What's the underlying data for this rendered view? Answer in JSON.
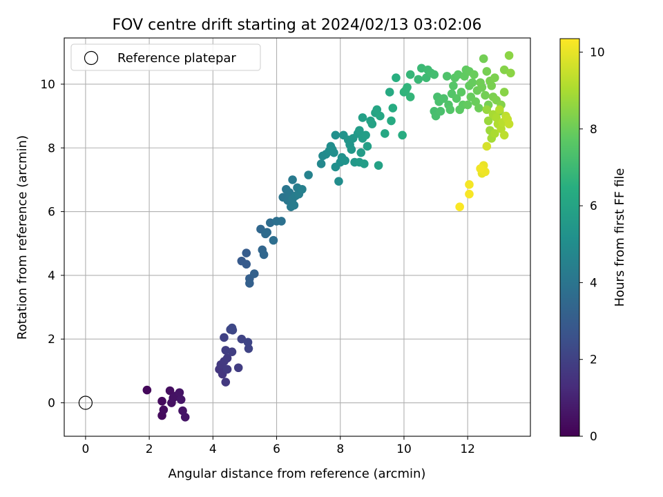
{
  "chart_data": {
    "type": "scatter",
    "title": "FOV centre drift starting at 2024/02/13 03:02:06",
    "xlabel": "Angular distance from reference (arcmin)",
    "ylabel": "Rotation from reference (arcmin)",
    "xlim": [
      -0.67,
      13.97
    ],
    "ylim": [
      -1.05,
      11.45
    ],
    "x_ticks": [
      0,
      2,
      4,
      6,
      8,
      10,
      12
    ],
    "y_ticks": [
      0,
      2,
      4,
      6,
      8,
      10
    ],
    "grid": true,
    "legend": {
      "placement": "top-left",
      "entries": [
        "Reference platepar"
      ]
    },
    "colorbar": {
      "label": "Hours from first FF file",
      "colormap": "viridis",
      "range": [
        0,
        10.35
      ],
      "ticks": [
        0,
        2,
        4,
        6,
        8,
        10
      ]
    },
    "reference_point": {
      "x": 0,
      "y": 0
    },
    "points": [
      [
        1.93,
        0.4,
        0.2
      ],
      [
        2.4,
        0.05,
        0.3
      ],
      [
        2.45,
        -0.22,
        0.35
      ],
      [
        2.4,
        -0.4,
        0.3
      ],
      [
        2.65,
        0.38,
        0.4
      ],
      [
        2.7,
        0.0,
        0.45
      ],
      [
        2.85,
        0.22,
        0.5
      ],
      [
        2.95,
        0.32,
        0.55
      ],
      [
        3.0,
        0.1,
        0.6
      ],
      [
        3.05,
        -0.25,
        0.55
      ],
      [
        3.13,
        -0.45,
        0.6
      ],
      [
        2.75,
        0.15,
        0.5
      ],
      [
        4.2,
        1.05,
        1.6
      ],
      [
        4.25,
        1.2,
        1.7
      ],
      [
        4.3,
        0.9,
        1.65
      ],
      [
        4.35,
        1.3,
        1.75
      ],
      [
        4.4,
        0.65,
        1.7
      ],
      [
        4.45,
        1.05,
        1.8
      ],
      [
        4.4,
        1.65,
        1.9
      ],
      [
        4.45,
        1.4,
        1.8
      ],
      [
        4.35,
        2.05,
        2.0
      ],
      [
        4.55,
        2.3,
        2.2
      ],
      [
        4.6,
        2.35,
        2.25
      ],
      [
        4.62,
        2.28,
        2.2
      ],
      [
        4.6,
        1.6,
        1.9
      ],
      [
        4.8,
        1.1,
        1.85
      ],
      [
        4.9,
        2.0,
        2.1
      ],
      [
        5.1,
        1.9,
        2.15
      ],
      [
        5.12,
        1.7,
        2.1
      ],
      [
        4.9,
        4.45,
        2.9
      ],
      [
        5.05,
        4.35,
        2.95
      ],
      [
        5.05,
        4.7,
        3.0
      ],
      [
        5.15,
        3.9,
        3.1
      ],
      [
        5.15,
        3.75,
        3.15
      ],
      [
        5.3,
        4.05,
        3.2
      ],
      [
        5.5,
        5.45,
        3.45
      ],
      [
        5.55,
        4.8,
        3.4
      ],
      [
        5.6,
        4.65,
        3.45
      ],
      [
        5.65,
        5.3,
        3.55
      ],
      [
        5.7,
        5.35,
        3.6
      ],
      [
        5.8,
        5.65,
        3.65
      ],
      [
        5.9,
        5.1,
        3.7
      ],
      [
        6.0,
        5.7,
        3.8
      ],
      [
        6.15,
        5.7,
        3.85
      ],
      [
        6.2,
        6.45,
        4.0
      ],
      [
        6.3,
        6.7,
        4.05
      ],
      [
        6.35,
        6.35,
        4.1
      ],
      [
        6.4,
        6.6,
        4.1
      ],
      [
        6.45,
        6.15,
        4.2
      ],
      [
        6.5,
        7.0,
        4.2
      ],
      [
        6.5,
        6.4,
        4.25
      ],
      [
        6.55,
        6.2,
        4.3
      ],
      [
        6.6,
        6.5,
        4.3
      ],
      [
        6.65,
        6.75,
        4.35
      ],
      [
        6.7,
        6.55,
        4.4
      ],
      [
        6.8,
        6.7,
        4.45
      ],
      [
        7.0,
        7.15,
        4.55
      ],
      [
        7.4,
        7.5,
        4.8
      ],
      [
        7.45,
        7.75,
        4.85
      ],
      [
        7.55,
        7.8,
        4.9
      ],
      [
        7.65,
        7.9,
        4.95
      ],
      [
        7.7,
        8.05,
        5.0
      ],
      [
        7.75,
        7.95,
        5.05
      ],
      [
        7.8,
        7.85,
        5.1
      ],
      [
        7.85,
        7.4,
        5.1
      ],
      [
        7.85,
        8.4,
        5.15
      ],
      [
        7.95,
        6.95,
        5.0
      ],
      [
        8.0,
        7.55,
        5.15
      ],
      [
        8.05,
        7.7,
        5.2
      ],
      [
        8.1,
        8.4,
        5.25
      ],
      [
        8.15,
        7.6,
        5.25
      ],
      [
        8.25,
        8.25,
        5.35
      ],
      [
        8.3,
        8.1,
        5.4
      ],
      [
        8.35,
        7.95,
        5.45
      ],
      [
        8.4,
        8.3,
        5.45
      ],
      [
        8.45,
        7.55,
        5.5
      ],
      [
        8.55,
        8.45,
        5.55
      ],
      [
        8.6,
        7.55,
        5.6
      ],
      [
        8.6,
        8.55,
        5.65
      ],
      [
        8.65,
        7.85,
        5.65
      ],
      [
        8.7,
        8.3,
        5.7
      ],
      [
        8.7,
        8.95,
        5.8
      ],
      [
        8.75,
        7.5,
        5.7
      ],
      [
        8.8,
        8.4,
        5.75
      ],
      [
        8.85,
        8.05,
        5.8
      ],
      [
        8.95,
        8.85,
        5.9
      ],
      [
        9.0,
        8.75,
        5.95
      ],
      [
        9.1,
        9.1,
        6.0
      ],
      [
        9.15,
        9.2,
        6.05
      ],
      [
        9.2,
        7.45,
        5.9
      ],
      [
        9.25,
        9.0,
        6.1
      ],
      [
        9.4,
        8.45,
        6.15
      ],
      [
        9.55,
        9.75,
        6.25
      ],
      [
        9.6,
        8.85,
        6.3
      ],
      [
        9.65,
        9.25,
        6.35
      ],
      [
        9.75,
        10.2,
        6.45
      ],
      [
        9.95,
        8.4,
        6.4
      ],
      [
        10.0,
        9.75,
        6.65
      ],
      [
        10.05,
        9.8,
        6.7
      ],
      [
        10.1,
        9.9,
        6.7
      ],
      [
        10.2,
        9.6,
        6.75
      ],
      [
        10.2,
        10.3,
        6.8
      ],
      [
        10.45,
        10.15,
        6.9
      ],
      [
        10.55,
        10.5,
        6.95
      ],
      [
        10.7,
        10.2,
        7.0
      ],
      [
        10.75,
        10.45,
        7.05
      ],
      [
        10.85,
        10.35,
        7.1
      ],
      [
        10.95,
        10.3,
        7.15
      ],
      [
        10.95,
        9.15,
        7.2
      ],
      [
        11.0,
        9.0,
        7.25
      ],
      [
        11.05,
        9.6,
        7.25
      ],
      [
        11.1,
        9.45,
        7.3
      ],
      [
        11.15,
        9.15,
        7.3
      ],
      [
        11.25,
        9.55,
        7.35
      ],
      [
        11.35,
        10.25,
        7.4
      ],
      [
        11.4,
        9.35,
        7.45
      ],
      [
        11.45,
        9.2,
        7.5
      ],
      [
        11.5,
        9.7,
        7.5
      ],
      [
        11.55,
        9.95,
        7.55
      ],
      [
        11.6,
        10.2,
        7.6
      ],
      [
        11.65,
        9.55,
        7.6
      ],
      [
        11.7,
        10.3,
        7.65
      ],
      [
        11.75,
        9.2,
        7.7
      ],
      [
        11.8,
        9.75,
        7.7
      ],
      [
        11.85,
        9.35,
        7.75
      ],
      [
        11.9,
        10.25,
        7.8
      ],
      [
        11.95,
        10.45,
        7.8
      ],
      [
        12.0,
        9.35,
        7.85
      ],
      [
        12.05,
        10.4,
        7.85
      ],
      [
        12.05,
        9.95,
        7.85
      ],
      [
        12.1,
        9.6,
        7.9
      ],
      [
        12.15,
        10.05,
        7.9
      ],
      [
        12.2,
        10.3,
        7.95
      ],
      [
        12.25,
        9.45,
        7.95
      ],
      [
        12.3,
        9.8,
        8.0
      ],
      [
        12.35,
        9.25,
        8.0
      ],
      [
        12.4,
        10.05,
        8.05
      ],
      [
        12.45,
        9.9,
        8.05
      ],
      [
        12.5,
        10.8,
        8.1
      ],
      [
        12.55,
        9.65,
        8.1
      ],
      [
        12.6,
        10.4,
        8.15
      ],
      [
        12.65,
        9.35,
        8.15
      ],
      [
        12.7,
        10.1,
        8.2
      ],
      [
        12.75,
        9.95,
        8.2
      ],
      [
        12.8,
        9.6,
        8.25
      ],
      [
        12.85,
        10.2,
        8.25
      ],
      [
        12.9,
        9.5,
        8.3
      ],
      [
        13.0,
        9.15,
        8.35
      ],
      [
        13.05,
        9.35,
        8.4
      ],
      [
        13.15,
        10.45,
        8.4
      ],
      [
        13.15,
        9.75,
        8.45
      ],
      [
        13.3,
        10.9,
        8.5
      ],
      [
        13.35,
        10.35,
        8.5
      ],
      [
        12.6,
        9.2,
        8.7
      ],
      [
        12.65,
        8.85,
        8.75
      ],
      [
        12.7,
        8.55,
        8.8
      ],
      [
        12.75,
        8.3,
        8.9
      ],
      [
        12.8,
        9.05,
        8.95
      ],
      [
        12.85,
        8.45,
        9.0
      ],
      [
        12.9,
        8.95,
        9.05
      ],
      [
        12.95,
        8.75,
        9.1
      ],
      [
        13.0,
        9.2,
        9.15
      ],
      [
        13.05,
        8.6,
        9.2
      ],
      [
        13.1,
        8.8,
        9.25
      ],
      [
        13.15,
        8.4,
        9.3
      ],
      [
        13.2,
        9.0,
        9.35
      ],
      [
        13.25,
        8.9,
        9.4
      ],
      [
        13.3,
        8.75,
        9.45
      ],
      [
        12.6,
        8.05,
        9.7
      ],
      [
        12.45,
        7.2,
        10.0
      ],
      [
        12.5,
        7.45,
        10.05
      ],
      [
        12.55,
        7.25,
        10.1
      ],
      [
        12.4,
        7.35,
        10.15
      ],
      [
        12.05,
        6.85,
        10.2
      ],
      [
        12.05,
        6.55,
        10.25
      ],
      [
        11.75,
        6.15,
        10.3
      ]
    ]
  }
}
